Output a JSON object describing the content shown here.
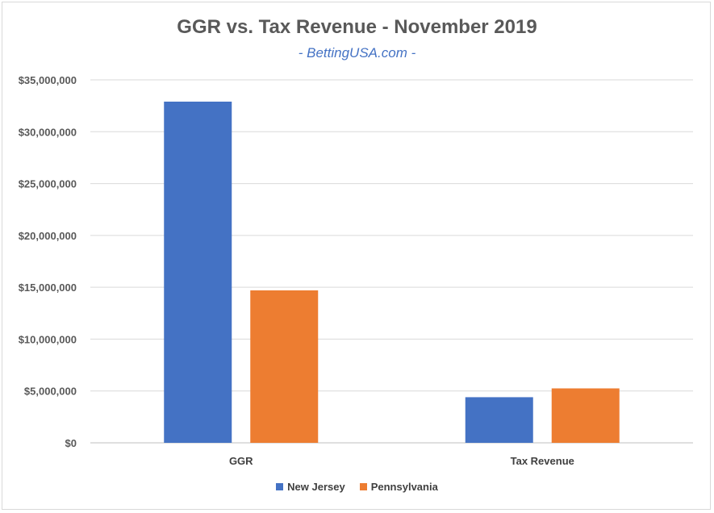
{
  "chart_data": {
    "type": "bar",
    "title": "GGR vs. Tax Revenue - November 2019",
    "subtitle": "- BettingUSA.com -",
    "categories": [
      "GGR",
      "Tax Revenue"
    ],
    "series": [
      {
        "name": "New Jersey",
        "color": "#4472c4",
        "values": [
          32900000,
          4400000
        ]
      },
      {
        "name": "Pennsylvania",
        "color": "#ed7d31",
        "values": [
          14700000,
          5250000
        ]
      }
    ],
    "ylim": [
      0,
      35000000
    ],
    "yticks": [
      0,
      5000000,
      10000000,
      15000000,
      20000000,
      25000000,
      30000000,
      35000000
    ],
    "ytick_labels": [
      "$0",
      "$5,000,000",
      "$10,000,000",
      "$15,000,000",
      "$20,000,000",
      "$25,000,000",
      "$30,000,000",
      "$35,000,000"
    ],
    "grid": true,
    "legend_position": "bottom",
    "xlabel": "",
    "ylabel": ""
  }
}
